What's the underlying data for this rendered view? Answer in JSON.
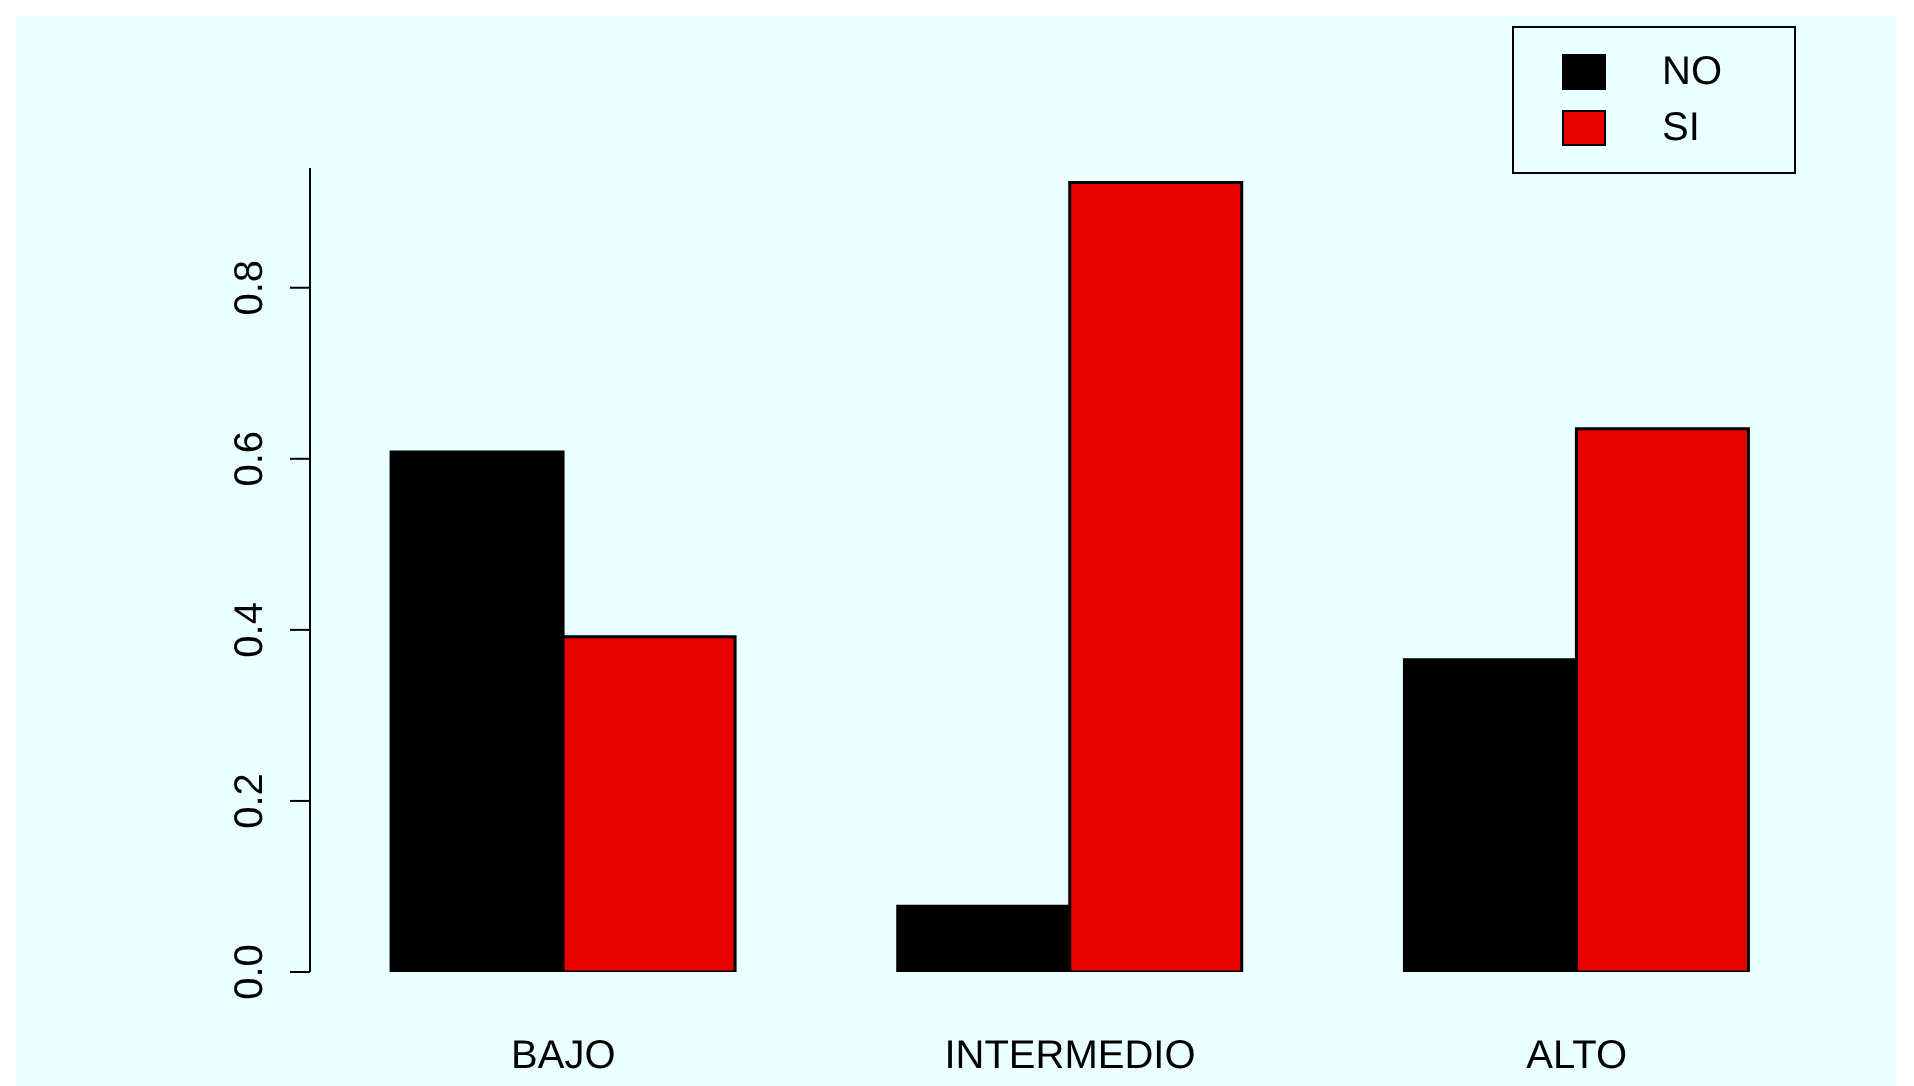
{
  "chart_data": {
    "type": "bar",
    "categories": [
      "BAJO",
      "INTERMEDIO",
      "ALTO"
    ],
    "series": [
      {
        "name": "NO",
        "color": "#000000",
        "values": [
          0.608,
          0.077,
          0.365
        ]
      },
      {
        "name": "SI",
        "color": "#e60000",
        "values": [
          0.392,
          0.923,
          0.635
        ]
      }
    ],
    "ylim": [
      0,
      0.94
    ],
    "yticks": [
      {
        "value": 0,
        "label": "0.0"
      },
      0.2,
      0.4,
      0.6,
      0.8
    ],
    "grid": false,
    "legend": "top right"
  }
}
